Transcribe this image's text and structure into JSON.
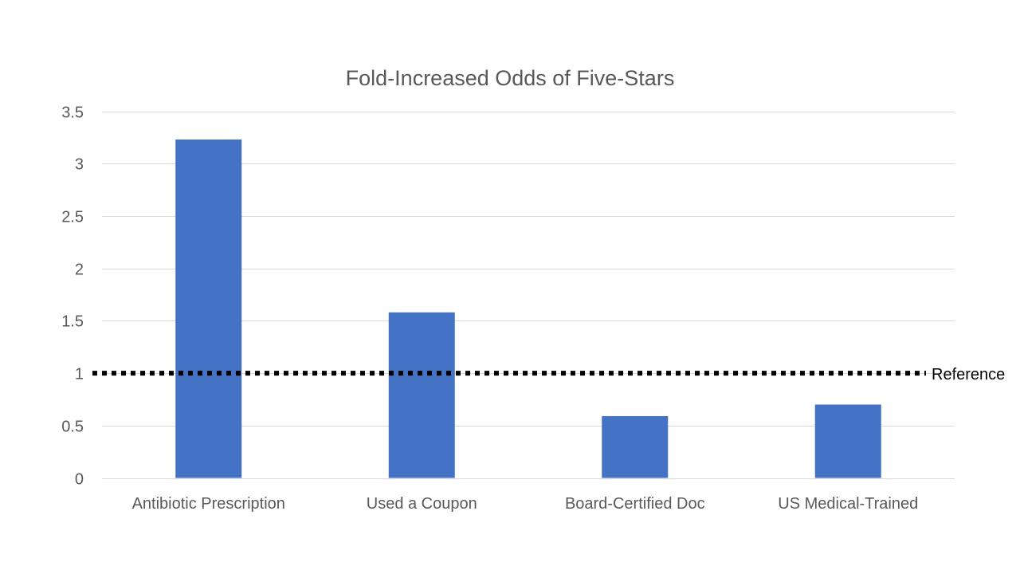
{
  "chart_data": {
    "type": "bar",
    "title": "Fold-Increased Odds of Five-Stars",
    "categories": [
      "Antibiotic Prescription",
      "Used a Coupon",
      "Board-Certified Doc",
      "US Medical-Trained"
    ],
    "values": [
      3.23,
      1.58,
      0.59,
      0.7
    ],
    "xlabel": "",
    "ylabel": "",
    "ylim": [
      0,
      3.5
    ],
    "yticks": [
      "0",
      "0.5",
      "1",
      "1.5",
      "2",
      "2.5",
      "3",
      "3.5"
    ],
    "ytick_values": [
      0,
      0.5,
      1,
      1.5,
      2,
      2.5,
      3,
      3.5
    ],
    "grid": true,
    "legend": "none",
    "reference_line": {
      "value": 1,
      "label": "Reference",
      "style": "dotted"
    },
    "colors": {
      "bar": "#4472C4",
      "grid": "#D9D9D9",
      "axis": "#D9D9D9",
      "reference": "#000000",
      "text": "#595959"
    }
  }
}
